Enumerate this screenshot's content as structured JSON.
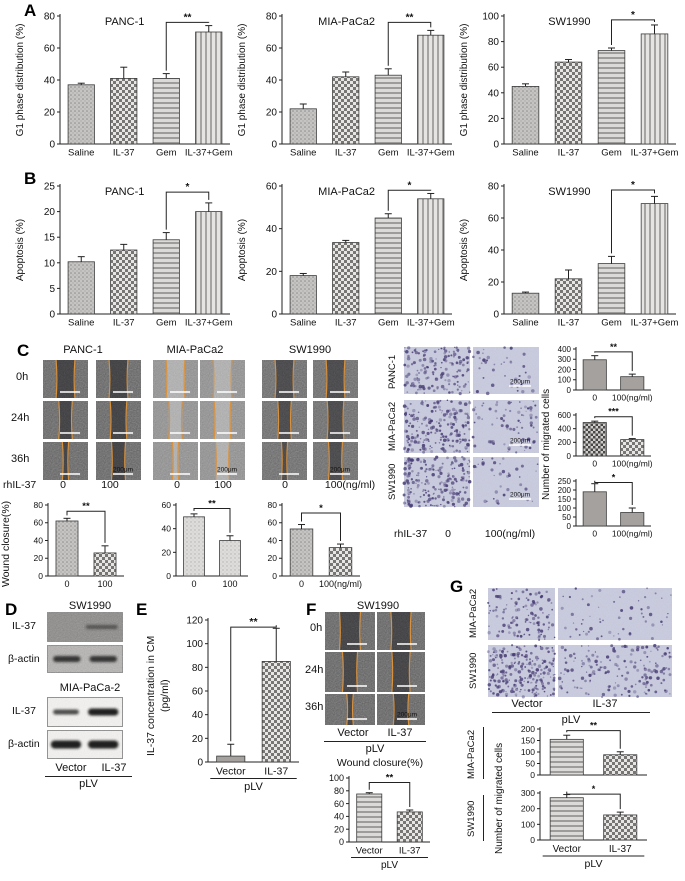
{
  "panel_labels": {
    "A": "A",
    "B": "B",
    "C": "C",
    "D": "D",
    "E": "E",
    "F": "F",
    "G": "G"
  },
  "panelC": {
    "cell_lines": [
      "PANC-1",
      "MIA-PaCa2",
      "SW1990"
    ],
    "time_labels": [
      "0h",
      "24h",
      "36h"
    ],
    "rhil37": "rhIL-37",
    "doses_left": [
      "0",
      "100",
      "0",
      "100",
      "0",
      "100(ng/ml)"
    ],
    "doses_right": [
      "0",
      "100(ng/ml)"
    ],
    "scalebar": "200μm"
  },
  "panelD": {
    "titles": [
      "SW1990",
      "MIA-PaCa-2"
    ],
    "proteins": [
      "IL-37",
      "β-actin"
    ],
    "lanes": [
      "Vector",
      "IL-37"
    ],
    "group": "pLV"
  },
  "panelE": {
    "lanes": [
      "Vector",
      "IL-37"
    ],
    "group": "pLV"
  },
  "panelF": {
    "title": "SW1990",
    "time_labels": [
      "0h",
      "24h",
      "36h"
    ],
    "lanes": [
      "Vector",
      "IL-37"
    ],
    "group": "pLV",
    "scalebar": "200μm"
  },
  "panelG": {
    "rows": [
      "MIA-PaCa2",
      "SW1990"
    ],
    "lanes": [
      "Vector",
      "IL-37"
    ],
    "group": "pLV"
  },
  "colors": {
    "wound_edge_orange": "#d8923f",
    "transwell_bg": "#c9cbdf",
    "transwell_dot": "#473c74",
    "bar_solid_gray": "#a5a19e"
  },
  "chart_data": [
    {
      "id": "a-panc1",
      "type": "bar",
      "title": "PANC-1",
      "ylabel": "G1 phase distribution (%)",
      "categories": [
        "Saline",
        "IL-37",
        "Gem",
        "IL-37+Gem"
      ],
      "values": [
        37,
        41,
        41,
        70
      ],
      "errors": [
        1,
        7,
        3,
        4
      ],
      "ylim": [
        0,
        80
      ],
      "yticks": [
        0,
        20,
        40,
        60,
        80
      ],
      "patterns": [
        "dots",
        "checker",
        "hlines",
        "vlines"
      ],
      "sig": {
        "i1": 2,
        "i2": 3,
        "label": "**",
        "y": 76
      }
    },
    {
      "id": "a-mia",
      "type": "bar",
      "title": "MIA-PaCa2",
      "ylabel": "G1 phase distribution (%)",
      "categories": [
        "Saline",
        "IL-37",
        "Gem",
        "IL-37+Gem"
      ],
      "values": [
        22,
        42,
        43,
        68
      ],
      "errors": [
        3,
        3,
        4,
        3
      ],
      "ylim": [
        0,
        80
      ],
      "yticks": [
        0,
        20,
        40,
        60,
        80
      ],
      "patterns": [
        "dots",
        "checker",
        "hlines",
        "vlines"
      ],
      "sig": {
        "i1": 2,
        "i2": 3,
        "label": "**",
        "y": 76
      }
    },
    {
      "id": "a-sw",
      "type": "bar",
      "title": "SW1990",
      "ylabel": "G1 phase distribution (%)",
      "categories": [
        "Saline",
        "IL-37",
        "Gem",
        "IL-37+Gem"
      ],
      "values": [
        45,
        64,
        73,
        86
      ],
      "errors": [
        2,
        2,
        2,
        7
      ],
      "ylim": [
        0,
        100
      ],
      "yticks": [
        0,
        20,
        40,
        60,
        80,
        100
      ],
      "patterns": [
        "dots",
        "checker",
        "hlines",
        "vlines"
      ],
      "sig": {
        "i1": 2,
        "i2": 3,
        "label": "*",
        "y": 97
      }
    },
    {
      "id": "b-panc1",
      "type": "bar",
      "title": "PANC-1",
      "ylabel": "Apoptosis (%)",
      "categories": [
        "Saline",
        "IL-37",
        "Gem",
        "IL-37+Gem"
      ],
      "values": [
        10.2,
        12.5,
        14.5,
        20
      ],
      "errors": [
        1,
        1.1,
        1.4,
        1.7
      ],
      "ylim": [
        0,
        25
      ],
      "yticks": [
        0,
        5,
        10,
        15,
        20,
        25
      ],
      "patterns": [
        "dots",
        "checker",
        "hlines",
        "vlines"
      ],
      "sig": {
        "i1": 2,
        "i2": 3,
        "label": "*",
        "y": 23.8
      }
    },
    {
      "id": "b-mia",
      "type": "bar",
      "title": "MIA-PaCa2",
      "ylabel": "Apoptosis (%)",
      "categories": [
        "Saline",
        "IL-37",
        "Gem",
        "IL-37+Gem"
      ],
      "values": [
        18,
        33.5,
        45,
        54
      ],
      "errors": [
        1,
        1,
        2,
        2.5
      ],
      "ylim": [
        0,
        60
      ],
      "yticks": [
        0,
        20,
        40,
        60
      ],
      "patterns": [
        "dots",
        "checker",
        "hlines",
        "vlines"
      ],
      "sig": {
        "i1": 2,
        "i2": 3,
        "label": "*",
        "y": 58
      }
    },
    {
      "id": "b-sw",
      "type": "bar",
      "title": "SW1990",
      "ylabel": "Apoptosis (%)",
      "categories": [
        "Saline",
        "IL-37",
        "Gem",
        "IL-37+Gem"
      ],
      "values": [
        13,
        22,
        31.5,
        69
      ],
      "errors": [
        0.7,
        5.5,
        4.5,
        4.5
      ],
      "ylim": [
        0,
        80
      ],
      "yticks": [
        0,
        20,
        40,
        60,
        80
      ],
      "patterns": [
        "dots",
        "checker",
        "hlines",
        "vlines"
      ],
      "sig": {
        "i1": 2,
        "i2": 3,
        "label": "*",
        "y": 77.5
      }
    },
    {
      "id": "cw-panc1",
      "type": "bar",
      "ylabel": "Wound closure(%)",
      "categories": [
        "0",
        "100"
      ],
      "values": [
        62,
        26
      ],
      "errors": [
        3,
        8
      ],
      "ylim": [
        0,
        80
      ],
      "yticks": [
        0,
        20,
        40,
        60,
        80
      ],
      "patterns": [
        "dots",
        "checker"
      ],
      "sig": {
        "i1": 0,
        "i2": 1,
        "label": "**",
        "y": 73
      }
    },
    {
      "id": "cw-mia",
      "type": "bar",
      "categories": [
        "0",
        "100"
      ],
      "values": [
        50,
        30
      ],
      "errors": [
        2.5,
        4
      ],
      "ylim": [
        0,
        60
      ],
      "yticks": [
        0,
        20,
        40,
        60
      ],
      "patterns": [
        "dotsLight",
        "dotsLight"
      ],
      "sig": {
        "i1": 0,
        "i2": 1,
        "label": "**",
        "y": 57
      }
    },
    {
      "id": "cw-sw",
      "type": "bar",
      "categories": [
        "0",
        "100(ng/ml)"
      ],
      "values": [
        53,
        32
      ],
      "errors": [
        5,
        4
      ],
      "ylim": [
        0,
        80
      ],
      "yticks": [
        0,
        20,
        40,
        60,
        80
      ],
      "patterns": [
        "dots",
        "checker"
      ],
      "sig": {
        "i1": 0,
        "i2": 1,
        "label": "*",
        "y": 71
      }
    },
    {
      "id": "cm-panc1",
      "type": "bar",
      "ylabel": "Number of migrated cells",
      "categories": [
        "0",
        "100(ng/ml)"
      ],
      "values": [
        295,
        130
      ],
      "errors": [
        40,
        25
      ],
      "ylim": [
        0,
        400
      ],
      "yticks": [
        0,
        100,
        200,
        300,
        400
      ],
      "patterns": [
        "solid",
        "solid"
      ],
      "sig": {
        "i1": 0,
        "i2": 1,
        "label": "**",
        "y": 372
      }
    },
    {
      "id": "cm-mia",
      "type": "bar",
      "categories": [
        "0",
        "100(ng/ml)"
      ],
      "values": [
        490,
        240
      ],
      "errors": [
        20,
        15
      ],
      "ylim": [
        0,
        600
      ],
      "yticks": [
        0,
        200,
        400,
        600
      ],
      "patterns": [
        "checkerDark",
        "checker"
      ],
      "sig": {
        "i1": 0,
        "i2": 1,
        "label": "***",
        "y": 575
      }
    },
    {
      "id": "cm-sw",
      "type": "bar",
      "categories": [
        "0",
        "100(ng/ml)"
      ],
      "values": [
        190,
        75
      ],
      "errors": [
        45,
        25
      ],
      "ylim": [
        0,
        250
      ],
      "yticks": [
        0,
        50,
        100,
        150,
        200,
        250
      ],
      "patterns": [
        "solid",
        "solid"
      ],
      "sig": {
        "i1": 0,
        "i2": 1,
        "label": "*",
        "y": 242
      }
    },
    {
      "id": "e-cm",
      "type": "bar",
      "ylabel": "IL-37 concentration in CM (pg/ml)",
      "ylabel_lines": [
        "IL-37 concentration in CM",
        "(pg/ml)"
      ],
      "categories": [
        "Vector",
        "IL-37"
      ],
      "group": "pLV",
      "values": [
        5,
        85
      ],
      "errors": [
        10,
        28
      ],
      "ylim": [
        0,
        120
      ],
      "yticks": [
        0,
        20,
        40,
        60,
        80,
        100,
        120
      ],
      "patterns": [
        "solid",
        "checker"
      ],
      "sig": {
        "i1": 0,
        "i2": 1,
        "label": "**",
        "y": 114
      }
    },
    {
      "id": "f-wound",
      "type": "bar",
      "title": "Wound closure(%)",
      "categories": [
        "Vector",
        "IL-37"
      ],
      "group": "pLV",
      "values": [
        75,
        47
      ],
      "errors": [
        2,
        3
      ],
      "ylim": [
        0,
        100
      ],
      "yticks": [
        0,
        20,
        40,
        60,
        80,
        100
      ],
      "patterns": [
        "hlines",
        "checker"
      ],
      "sig": {
        "i1": 0,
        "i2": 1,
        "label": "**",
        "y": 93
      }
    },
    {
      "id": "g-mia",
      "type": "bar",
      "row_label": "MIA-PaCa2",
      "categories": [
        "Vector",
        "IL-37"
      ],
      "values": [
        155,
        88
      ],
      "errors": [
        18,
        13
      ],
      "ylim": [
        0,
        200
      ],
      "yticks": [
        0,
        50,
        100,
        150,
        200
      ],
      "patterns": [
        "hlines",
        "checker"
      ],
      "sig": {
        "i1": 0,
        "i2": 1,
        "label": "**",
        "y": 193
      }
    },
    {
      "id": "g-sw",
      "type": "bar",
      "row_label": "SW1990",
      "ylabel": "Number of migrated cells",
      "categories": [
        "Vector",
        "IL-37"
      ],
      "group": "pLV",
      "values": [
        270,
        160
      ],
      "errors": [
        20,
        18
      ],
      "ylim": [
        0,
        300
      ],
      "yticks": [
        0,
        100,
        200,
        300
      ],
      "patterns": [
        "hlines",
        "checker"
      ],
      "sig": {
        "i1": 0,
        "i2": 1,
        "label": "*",
        "y": 293
      }
    }
  ]
}
